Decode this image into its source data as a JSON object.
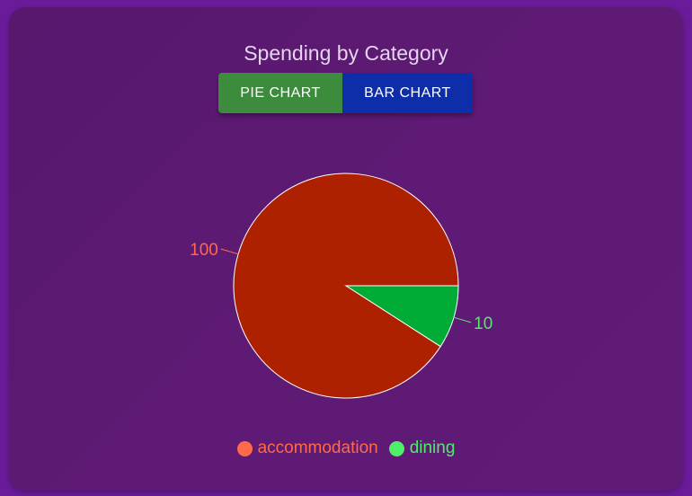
{
  "title": "Spending by Category",
  "toolbar": {
    "pie_label": "PIE CHART",
    "bar_label": "BAR CHART"
  },
  "colors": {
    "accommodation_slice": "#ae2100",
    "dining_slice": "#00ac35",
    "accommodation_text": "#ff6a4a",
    "dining_text": "#5de36d",
    "legend_accommodation": "#ff6a4a",
    "legend_dining": "#4fee6a"
  },
  "chart_data": {
    "type": "pie",
    "categories": [
      "accommodation",
      "dining"
    ],
    "values": [
      100,
      10
    ],
    "data_labels": [
      "100",
      "10"
    ],
    "legend": [
      "accommodation",
      "dining"
    ],
    "legend_placement": "bottom"
  }
}
